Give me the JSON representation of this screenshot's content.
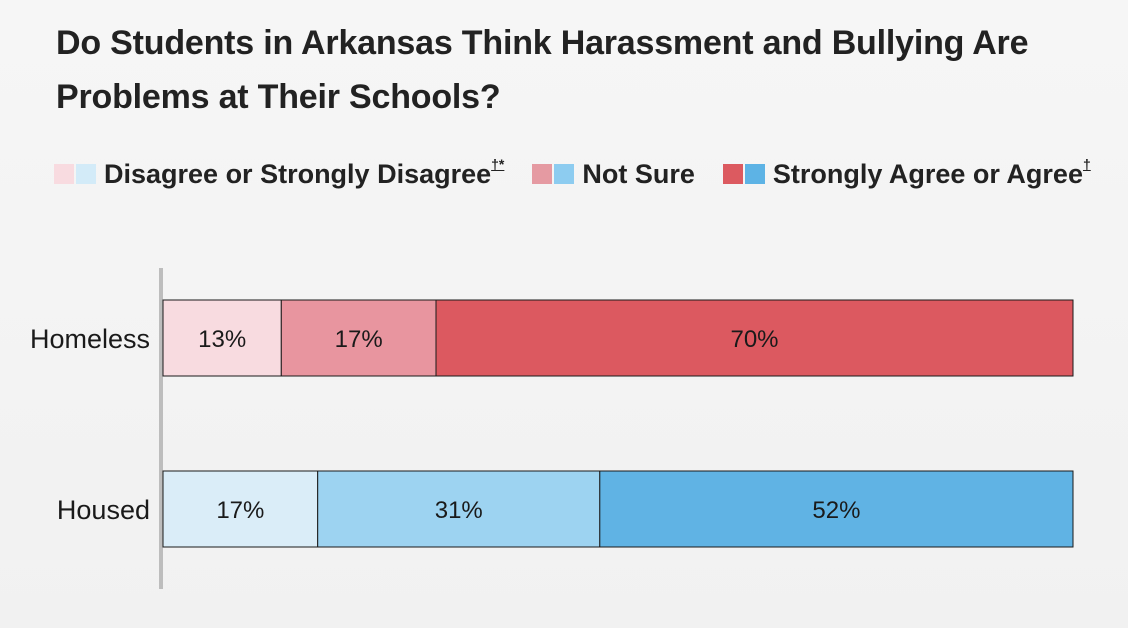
{
  "chart_data": {
    "type": "bar",
    "orientation": "horizontal",
    "stacked": true,
    "title": "Do Students in Arkansas Think Harassment and Bullying Are Problems at Their Schools?",
    "legend": [
      {
        "label": "Disagree or Strongly Disagree",
        "mark": "†*",
        "colors": [
          "#f8dbe0",
          "#d3ebf8"
        ]
      },
      {
        "label": "Not Sure",
        "mark": "",
        "colors": [
          "#e59aa2",
          "#8dccf0"
        ]
      },
      {
        "label": "Strongly Agree or Agree",
        "mark": "†",
        "colors": [
          "#dc5a60",
          "#5db3e5"
        ]
      }
    ],
    "categories": [
      "Homeless",
      "Housed"
    ],
    "series": [
      {
        "name": "Disagree or Strongly Disagree",
        "values": [
          13,
          17
        ],
        "labels": [
          "13%",
          "17%"
        ]
      },
      {
        "name": "Not Sure",
        "values": [
          17,
          31
        ],
        "labels": [
          "17%",
          "31%"
        ]
      },
      {
        "name": "Strongly Agree or Agree",
        "values": [
          70,
          52
        ],
        "labels": [
          "70%",
          "52%"
        ]
      }
    ],
    "colors": {
      "Homeless": [
        "#f8dbe0",
        "#e8959f",
        "#dc5960"
      ],
      "Housed": [
        "#daedf8",
        "#9dd3f1",
        "#60b3e4"
      ]
    },
    "xlim": [
      0,
      100
    ]
  }
}
